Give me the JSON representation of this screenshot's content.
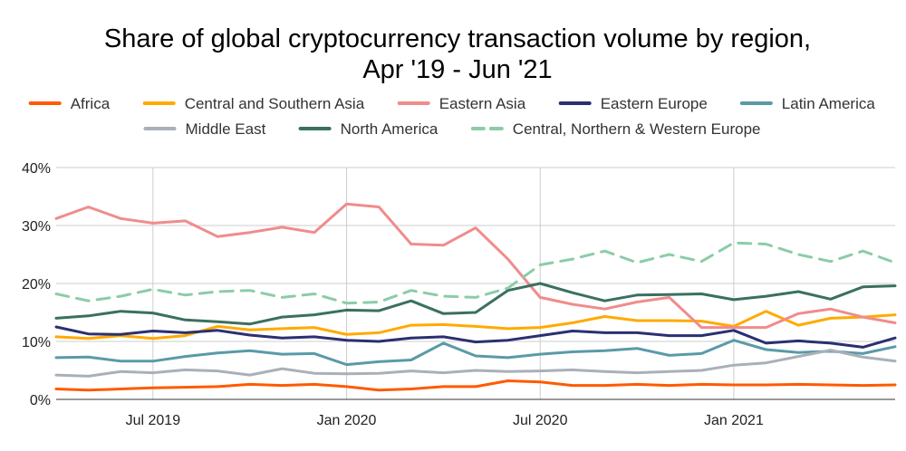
{
  "chart_data": {
    "type": "line",
    "title": [
      "Share of global cryptocurrency transaction volume by region,",
      "Apr '19 - Jun '21"
    ],
    "xlabel": "",
    "ylabel": "",
    "x": [
      "2019-04",
      "2019-05",
      "2019-06",
      "2019-07",
      "2019-08",
      "2019-09",
      "2019-10",
      "2019-11",
      "2019-12",
      "2020-01",
      "2020-02",
      "2020-03",
      "2020-04",
      "2020-05",
      "2020-06",
      "2020-07",
      "2020-08",
      "2020-09",
      "2020-10",
      "2020-11",
      "2020-12",
      "2021-01",
      "2021-02",
      "2021-03",
      "2021-04",
      "2021-05",
      "2021-06"
    ],
    "x_ticks": [
      "2019-07",
      "2020-01",
      "2020-07",
      "2021-01"
    ],
    "x_tick_labels": [
      "Jul 2019",
      "Jan 2020",
      "Jul 2020",
      "Jan 2021"
    ],
    "ylim": [
      0,
      40
    ],
    "y_ticks": [
      0,
      10,
      20,
      30,
      40
    ],
    "y_tick_labels": [
      "0%",
      "10%",
      "20%",
      "30%",
      "40%"
    ],
    "grid": true,
    "legend_position": "top",
    "series": [
      {
        "name": "Africa",
        "color": "#ff5a00",
        "dash": false,
        "values": [
          1.8,
          1.6,
          1.8,
          2.0,
          2.1,
          2.2,
          2.6,
          2.4,
          2.6,
          2.2,
          1.6,
          1.8,
          2.2,
          2.2,
          3.2,
          3.0,
          2.4,
          2.4,
          2.6,
          2.4,
          2.6,
          2.5,
          2.5,
          2.6,
          2.5,
          2.4,
          2.5
        ]
      },
      {
        "name": "Central and Southern Asia",
        "color": "#ffaa00",
        "dash": false,
        "values": [
          10.8,
          10.5,
          11.0,
          10.5,
          11.0,
          12.6,
          12.0,
          12.2,
          12.4,
          11.2,
          11.5,
          12.8,
          12.9,
          12.6,
          12.2,
          12.4,
          13.2,
          14.3,
          13.6,
          13.6,
          13.5,
          12.6,
          15.2,
          12.8,
          14.0,
          14.2,
          14.6
        ]
      },
      {
        "name": "Eastern Asia",
        "color": "#f08c8c",
        "dash": false,
        "values": [
          31.2,
          33.2,
          31.2,
          30.4,
          30.8,
          28.1,
          28.8,
          29.7,
          28.8,
          33.7,
          33.2,
          26.8,
          26.6,
          29.6,
          24.2,
          17.6,
          16.4,
          15.6,
          16.8,
          17.6,
          12.4,
          12.4,
          12.4,
          14.8,
          15.6,
          14.2,
          13.2
        ]
      },
      {
        "name": "Eastern Europe",
        "color": "#2a3070",
        "dash": false,
        "values": [
          12.5,
          11.3,
          11.2,
          11.8,
          11.5,
          11.9,
          11.1,
          10.6,
          10.8,
          10.2,
          10.0,
          10.6,
          10.8,
          9.9,
          10.2,
          11.0,
          11.8,
          11.5,
          11.5,
          11.0,
          11.0,
          11.9,
          9.7,
          10.1,
          9.7,
          9.0,
          10.6
        ]
      },
      {
        "name": "Latin America",
        "color": "#5a9aa8",
        "dash": false,
        "values": [
          7.2,
          7.3,
          6.6,
          6.6,
          7.4,
          8.0,
          8.4,
          7.8,
          7.9,
          6.0,
          6.5,
          6.8,
          9.7,
          7.5,
          7.2,
          7.8,
          8.2,
          8.4,
          8.8,
          7.6,
          7.9,
          10.2,
          8.6,
          8.1,
          8.3,
          7.9,
          9.1
        ]
      },
      {
        "name": "Middle East",
        "color": "#aab0b8",
        "dash": false,
        "values": [
          4.2,
          4.0,
          4.8,
          4.6,
          5.1,
          4.9,
          4.2,
          5.3,
          4.5,
          4.4,
          4.5,
          4.9,
          4.6,
          5.0,
          4.8,
          4.9,
          5.1,
          4.8,
          4.6,
          4.8,
          5.0,
          5.9,
          6.3,
          7.4,
          8.5,
          7.3,
          6.6
        ]
      },
      {
        "name": "North America",
        "color": "#3a7060",
        "dash": false,
        "values": [
          14.0,
          14.4,
          15.2,
          14.9,
          13.7,
          13.4,
          13.0,
          14.2,
          14.6,
          15.4,
          15.3,
          17.0,
          14.8,
          15.0,
          18.8,
          20.0,
          18.4,
          17.0,
          18.0,
          18.1,
          18.2,
          17.2,
          17.8,
          18.6,
          17.3,
          19.4,
          19.6
        ]
      },
      {
        "name": "Central, Northern & Western Europe",
        "color": "#8ccca8",
        "dash": true,
        "values": [
          18.2,
          17.0,
          17.8,
          19.0,
          18.0,
          18.6,
          18.8,
          17.6,
          18.2,
          16.6,
          16.8,
          18.8,
          17.8,
          17.6,
          19.2,
          23.2,
          24.2,
          25.6,
          23.6,
          25.0,
          23.8,
          27.0,
          26.8,
          25.0,
          23.8,
          25.6,
          23.6
        ]
      }
    ]
  }
}
